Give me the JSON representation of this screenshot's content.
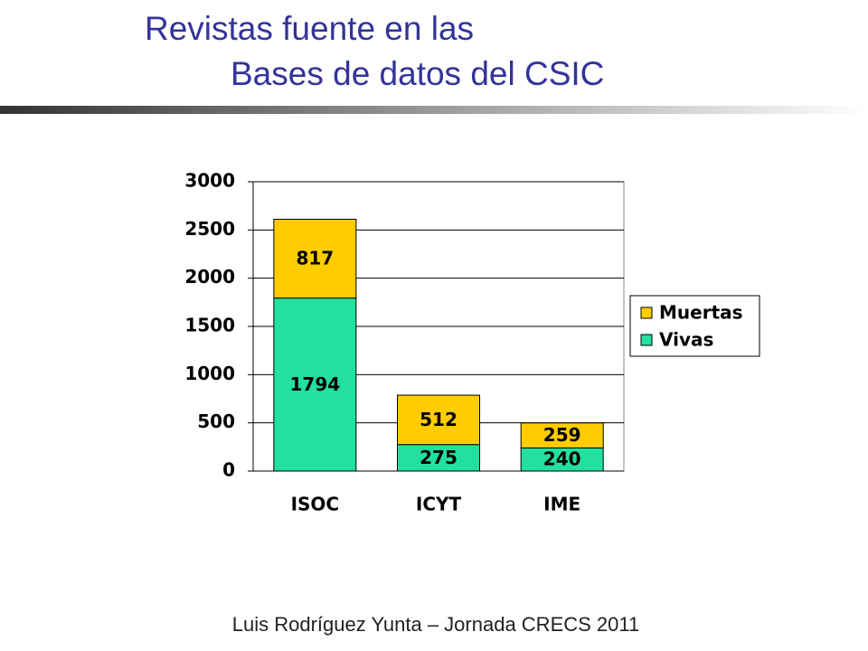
{
  "slide": {
    "title_lines": [
      "Revistas fuente en las",
      "Bases de datos del CSIC"
    ],
    "footer": "Luis Rodríguez Yunta – Jornada CRECS 2011"
  },
  "chart_data": {
    "type": "stacked_bar",
    "categories": [
      "ISOC",
      "ICYT",
      "IME"
    ],
    "series": [
      {
        "name": "Vivas",
        "color": "#22e0a0",
        "values": [
          1794,
          275,
          240
        ]
      },
      {
        "name": "Muertas",
        "color": "#ffcc00",
        "values": [
          817,
          512,
          259
        ]
      }
    ],
    "ylim": [
      0,
      3000
    ],
    "yticks": [
      0,
      500,
      1000,
      1500,
      2000,
      2500,
      3000
    ],
    "grid": true,
    "legend": "right"
  }
}
